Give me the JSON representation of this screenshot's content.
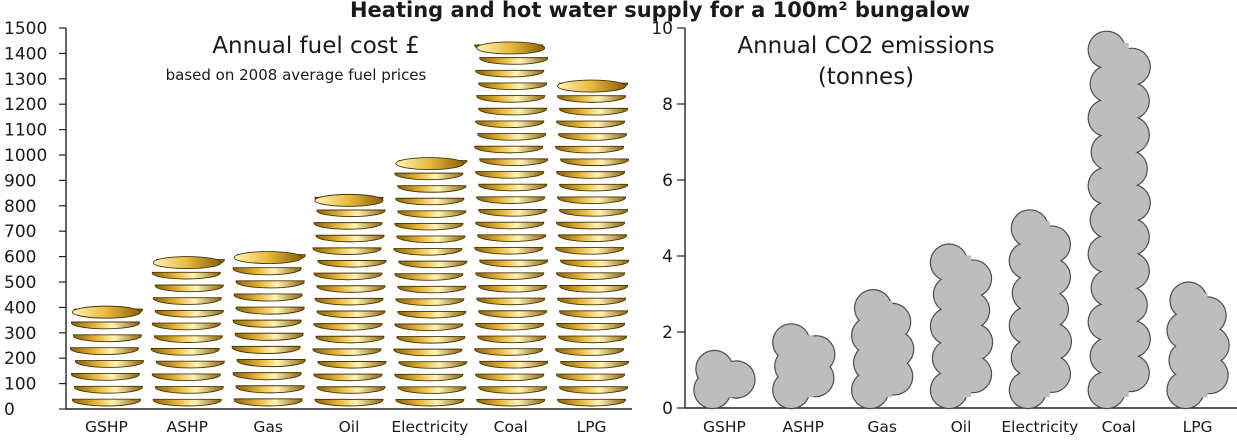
{
  "page_title": "Heating and hot water supply for a 100m² bungalow",
  "chart_data": [
    {
      "type": "bar",
      "title": "Annual fuel cost £",
      "subtitle": "based on 2008 average fuel prices",
      "categories": [
        "GSHP",
        "ASHP",
        "Gas",
        "Oil",
        "Electricity",
        "Coal",
        "LPG"
      ],
      "values": [
        405,
        600,
        620,
        845,
        990,
        1445,
        1295
      ],
      "ylim": [
        0,
        1500
      ],
      "yticks": [
        "0",
        "100",
        "200",
        "300",
        "400",
        "500",
        "600",
        "700",
        "800",
        "900",
        "1000",
        "1100",
        "1200",
        "1300",
        "1400",
        "1500"
      ],
      "marker": "coin-stack",
      "colors": {
        "coin_light": "#fff4b8",
        "coin_mid": "#e7b83c",
        "coin_dark": "#8a6108",
        "coin_edge": "#4a3606"
      }
    },
    {
      "type": "bar",
      "title": "Annual CO2 emissions",
      "subtitle": "(tonnes)",
      "categories": [
        "GSHP",
        "ASHP",
        "Gas",
        "Oil",
        "Electricity",
        "Coal",
        "LPG"
      ],
      "values": [
        1.5,
        2.2,
        3.1,
        4.3,
        5.2,
        9.9,
        3.3
      ],
      "ylim": [
        0,
        10
      ],
      "yticks": [
        "0",
        "2",
        "4",
        "6",
        "8",
        "10"
      ],
      "marker": "cloud-stack",
      "colors": {
        "cloud_fill": "#bdbdbd",
        "cloud_stroke": "#4d4d4d"
      }
    }
  ]
}
